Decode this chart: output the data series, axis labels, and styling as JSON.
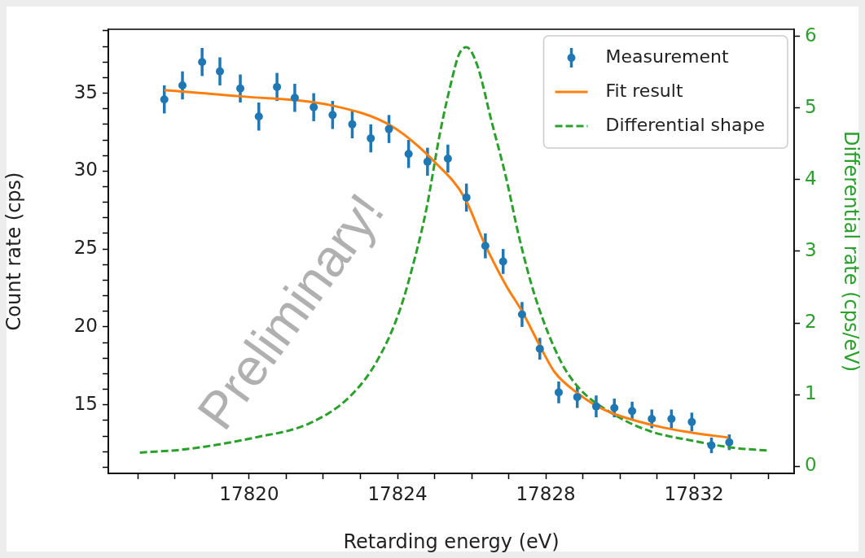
{
  "chart_data": {
    "type": "line",
    "xlabel": "Retarding energy (eV)",
    "ylabel": "Count rate (cps)",
    "y2label": "Differential rate (cps/eV)",
    "xlim": [
      17816.2,
      17834.7
    ],
    "ylim": [
      10.6,
      39.1
    ],
    "y2lim": [
      -0.1,
      6.1
    ],
    "xticks": [
      {
        "value": 17817,
        "label": null
      },
      {
        "value": 17818,
        "label": null
      },
      {
        "value": 17819,
        "label": null
      },
      17820,
      {
        "value": 17821,
        "label": null
      },
      {
        "value": 17822,
        "label": null
      },
      {
        "value": 17823,
        "label": null
      },
      17824,
      {
        "value": 17825,
        "label": null
      },
      {
        "value": 17826,
        "label": null
      },
      {
        "value": 17827,
        "label": null
      },
      17828,
      {
        "value": 17829,
        "label": null
      },
      {
        "value": 17830,
        "label": null
      },
      {
        "value": 17831,
        "label": null
      },
      17832,
      {
        "value": 17833,
        "label": null
      },
      {
        "value": 17834,
        "label": null
      }
    ],
    "yticks": [
      {
        "value": 11,
        "label": null
      },
      {
        "value": 12,
        "label": null
      },
      {
        "value": 13,
        "label": null
      },
      {
        "value": 14,
        "label": null
      },
      15,
      {
        "value": 16,
        "label": null
      },
      {
        "value": 17,
        "label": null
      },
      {
        "value": 18,
        "label": null
      },
      {
        "value": 19,
        "label": null
      },
      20,
      {
        "value": 21,
        "label": null
      },
      {
        "value": 22,
        "label": null
      },
      {
        "value": 23,
        "label": null
      },
      {
        "value": 24,
        "label": null
      },
      25,
      {
        "value": 26,
        "label": null
      },
      {
        "value": 27,
        "label": null
      },
      {
        "value": 28,
        "label": null
      },
      {
        "value": 29,
        "label": null
      },
      30,
      {
        "value": 31,
        "label": null
      },
      {
        "value": 32,
        "label": null
      },
      {
        "value": 33,
        "label": null
      },
      {
        "value": 34,
        "label": null
      },
      35,
      {
        "value": 36,
        "label": null
      },
      {
        "value": 37,
        "label": null
      },
      {
        "value": 38,
        "label": null
      },
      {
        "value": 39,
        "label": null
      }
    ],
    "y2ticks": [
      0,
      1,
      2,
      3,
      4,
      5,
      6
    ],
    "grid": false,
    "legend": "top right",
    "annotations": [
      "Preliminary!"
    ],
    "series": [
      {
        "name": "Measurement",
        "type": "scatter",
        "marker": "circle",
        "color": "#1f77b4",
        "x": [
          17817.71,
          17818.2,
          17818.73,
          17819.21,
          17819.76,
          17820.26,
          17820.75,
          17821.23,
          17821.74,
          17822.25,
          17822.78,
          17823.28,
          17823.77,
          17824.3,
          17824.81,
          17825.36,
          17825.86,
          17826.37,
          17826.85,
          17827.36,
          17827.84,
          17828.35,
          17828.85,
          17829.36,
          17829.85,
          17830.33,
          17830.86,
          17831.39,
          17831.94,
          17832.47,
          17832.95
        ],
        "values": [
          34.6,
          35.5,
          37.0,
          36.4,
          35.3,
          33.5,
          35.4,
          34.7,
          34.1,
          33.6,
          33.0,
          32.1,
          32.7,
          31.1,
          30.6,
          30.8,
          28.3,
          25.2,
          24.2,
          20.8,
          18.6,
          15.8,
          15.5,
          14.9,
          14.8,
          14.6,
          14.1,
          14.1,
          13.9,
          12.4,
          12.6
        ],
        "errors": [
          0.9,
          0.9,
          0.9,
          0.9,
          0.9,
          0.9,
          0.9,
          0.9,
          0.9,
          0.9,
          0.9,
          0.9,
          0.9,
          0.9,
          0.9,
          0.9,
          0.9,
          0.8,
          0.8,
          0.8,
          0.7,
          0.7,
          0.7,
          0.7,
          0.6,
          0.6,
          0.6,
          0.6,
          0.6,
          0.5,
          0.5
        ]
      },
      {
        "name": "Fit result",
        "marker": "none",
        "line_style": "solid",
        "color": "#ff7f0e",
        "x": [
          17817.71,
          17819.76,
          17822.25,
          17823.83,
          17825.04,
          17825.81,
          17826.32,
          17826.92,
          17827.36,
          17827.97,
          17828.24,
          17828.83,
          17829.56,
          17830.88,
          17831.98,
          17832.93
        ],
        "values": [
          35.2,
          34.8,
          34.2,
          32.9,
          30.5,
          28.3,
          25.5,
          22.7,
          21.0,
          18.2,
          17.1,
          15.8,
          14.7,
          13.7,
          13.2,
          12.9
        ]
      },
      {
        "name": "Differential shape",
        "axis": "y2",
        "marker": "none",
        "line_style": "dashed",
        "color": "#2ca02c",
        "x": [
          17817.05,
          17818.33,
          17820.15,
          17821.63,
          17822.73,
          17823.46,
          17824.05,
          17824.49,
          17824.78,
          17825.15,
          17825.44,
          17825.66,
          17825.86,
          17826.15,
          17826.54,
          17826.92,
          17827.29,
          17827.73,
          17828.39,
          17828.9,
          17829.85,
          17830.81,
          17831.92,
          17833.02,
          17833.96
        ],
        "values": [
          0.19,
          0.24,
          0.4,
          0.6,
          0.98,
          1.48,
          2.16,
          2.95,
          3.59,
          4.66,
          5.34,
          5.75,
          5.85,
          5.6,
          4.81,
          4.05,
          3.18,
          2.34,
          1.48,
          1.09,
          0.72,
          0.49,
          0.36,
          0.26,
          0.22
        ]
      }
    ]
  }
}
